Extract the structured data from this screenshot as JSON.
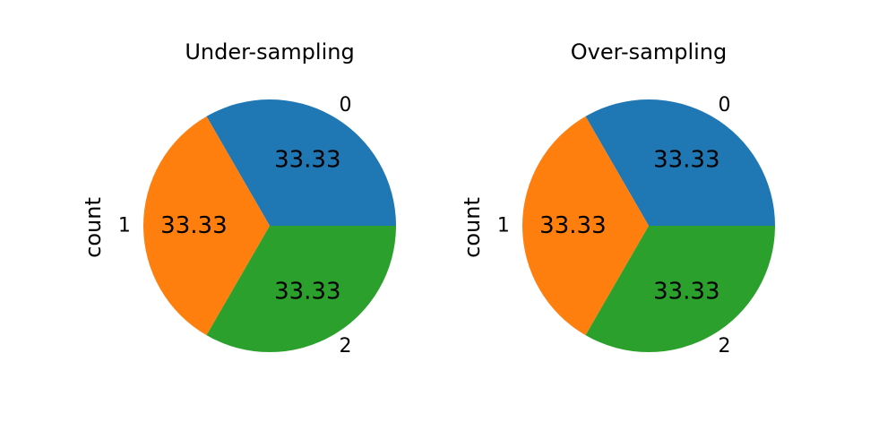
{
  "chart_data": [
    {
      "type": "pie",
      "title": "Under-sampling",
      "ylabel": "count",
      "slices": [
        {
          "label": "0",
          "value": 33.33,
          "color": "#1f77b4"
        },
        {
          "label": "1",
          "value": 33.33,
          "color": "#ff7f0e"
        },
        {
          "label": "2",
          "value": 33.33,
          "color": "#2ca02c"
        }
      ]
    },
    {
      "type": "pie",
      "title": "Over-sampling",
      "ylabel": "count",
      "slices": [
        {
          "label": "0",
          "value": 33.33,
          "color": "#1f77b4"
        },
        {
          "label": "1",
          "value": 33.33,
          "color": "#ff7f0e"
        },
        {
          "label": "2",
          "value": 33.33,
          "color": "#2ca02c"
        }
      ]
    }
  ]
}
